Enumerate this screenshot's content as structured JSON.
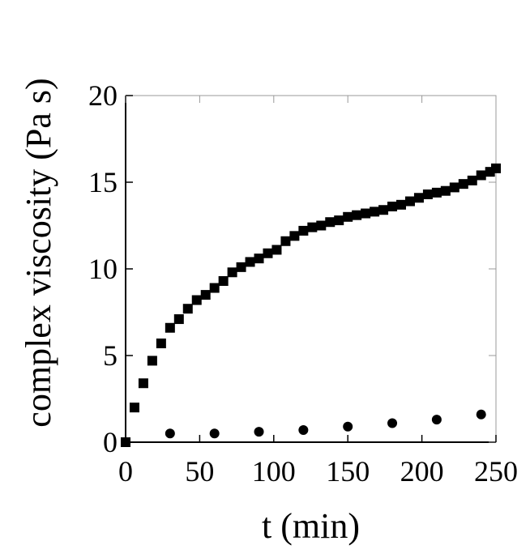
{
  "chart_data": {
    "type": "scatter",
    "xlabel": "t (min)",
    "ylabel": "complex viscosity (Pa s)",
    "xlim": [
      0,
      250
    ],
    "ylim": [
      0,
      20
    ],
    "xticks": [
      "0",
      "50",
      "100",
      "150",
      "200",
      "250"
    ],
    "yticks": [
      "0",
      "5",
      "10",
      "15",
      "20"
    ],
    "grid": false,
    "legend": "none",
    "series": [
      {
        "marker": "square",
        "color": "#000000",
        "x": [
          0,
          6,
          12,
          18,
          24,
          30,
          36,
          42,
          48,
          54,
          60,
          66,
          72,
          78,
          84,
          90,
          96,
          102,
          108,
          114,
          120,
          126,
          132,
          138,
          144,
          150,
          156,
          162,
          168,
          174,
          180,
          186,
          192,
          198,
          204,
          210,
          216,
          222,
          228,
          234,
          240,
          246,
          250
        ],
        "y": [
          0.0,
          2.0,
          3.4,
          4.7,
          5.7,
          6.6,
          7.1,
          7.7,
          8.2,
          8.5,
          8.9,
          9.3,
          9.8,
          10.1,
          10.4,
          10.6,
          10.9,
          11.1,
          11.6,
          11.9,
          12.2,
          12.4,
          12.5,
          12.7,
          12.8,
          13.0,
          13.1,
          13.2,
          13.3,
          13.4,
          13.6,
          13.7,
          13.9,
          14.1,
          14.3,
          14.4,
          14.5,
          14.7,
          14.9,
          15.1,
          15.4,
          15.6,
          15.8
        ]
      },
      {
        "marker": "circle",
        "color": "#000000",
        "x": [
          30,
          60,
          90,
          120,
          150,
          180,
          210,
          240
        ],
        "y": [
          0.5,
          0.5,
          0.6,
          0.7,
          0.9,
          1.1,
          1.3,
          1.6
        ]
      }
    ]
  }
}
